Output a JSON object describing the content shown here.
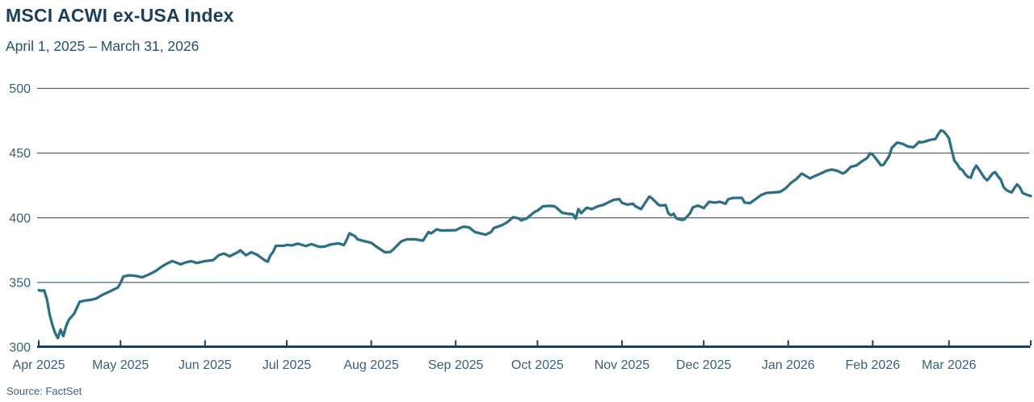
{
  "header": {
    "title": "MSCI ACWI ex-USA Index",
    "subtitle": "April 1, 2025 – March 31, 2026"
  },
  "footer": {
    "source": "Source: FactSet"
  },
  "colors": {
    "background": "#ffffff",
    "line": "#2d6f84",
    "gridline": "#4b697f",
    "axis": "#1e3e59",
    "title_text": "#1c3e59",
    "subtitle_text": "#27516b",
    "tick_text": "#3a5f78",
    "source_text": "#41607a"
  },
  "chart_data": {
    "type": "line",
    "title": "MSCI ACWI ex-USA Index",
    "subtitle": "April 1, 2025 – March 31, 2026",
    "source": "Source: FactSet",
    "xlabel": "",
    "ylabel": "",
    "x_start_date": "2025-04-01",
    "x_end_date": "2026-03-31",
    "x_unit": "day_offset_from_start",
    "ylim": [
      300,
      500
    ],
    "yticks": [
      300,
      350,
      400,
      450,
      500
    ],
    "grid": "horizontal",
    "legend": "none",
    "x_ticks": [
      {
        "label": "Apr 2025",
        "day": 0
      },
      {
        "label": "May 2025",
        "day": 30
      },
      {
        "label": "Jun 2025",
        "day": 61
      },
      {
        "label": "Jul 2025",
        "day": 91
      },
      {
        "label": "Aug 2025",
        "day": 122
      },
      {
        "label": "Sep 2025",
        "day": 153
      },
      {
        "label": "Oct 2025",
        "day": 183
      },
      {
        "label": "Nov 2025",
        "day": 214
      },
      {
        "label": "Dec 2025",
        "day": 244
      },
      {
        "label": "Jan 2026",
        "day": 275
      },
      {
        "label": "Feb 2026",
        "day": 306
      },
      {
        "label": "Mar 2026",
        "day": 334
      }
    ],
    "series": [
      {
        "name": "MSCI ACWI ex-USA Index",
        "points": [
          [
            0,
            344
          ],
          [
            1,
            343.6
          ],
          [
            2,
            343.9
          ],
          [
            3,
            337
          ],
          [
            4,
            325
          ],
          [
            5,
            317
          ],
          [
            6,
            311
          ],
          [
            7,
            307
          ],
          [
            8,
            313.5
          ],
          [
            9,
            308.5
          ],
          [
            10,
            316
          ],
          [
            11,
            321
          ],
          [
            13,
            326
          ],
          [
            15,
            335
          ],
          [
            17,
            336
          ],
          [
            19,
            336.5
          ],
          [
            21,
            337.5
          ],
          [
            23,
            340
          ],
          [
            26,
            343
          ],
          [
            29,
            346
          ],
          [
            30,
            349.5
          ],
          [
            31,
            354.5
          ],
          [
            33,
            355.5
          ],
          [
            35,
            355.2
          ],
          [
            38,
            354
          ],
          [
            41,
            356.7
          ],
          [
            43,
            359
          ],
          [
            45,
            362
          ],
          [
            47,
            364.5
          ],
          [
            49,
            366.5
          ],
          [
            52,
            364
          ],
          [
            54,
            365.5
          ],
          [
            56,
            366.4
          ],
          [
            58,
            365
          ],
          [
            60,
            366
          ],
          [
            61,
            366.5
          ],
          [
            64,
            367.2
          ],
          [
            66,
            371
          ],
          [
            68,
            372.3
          ],
          [
            70,
            370.2
          ],
          [
            73,
            373.3
          ],
          [
            74,
            374.8
          ],
          [
            76,
            371
          ],
          [
            78,
            373.3
          ],
          [
            80,
            371.5
          ],
          [
            83,
            367
          ],
          [
            84,
            366
          ],
          [
            85,
            371
          ],
          [
            86,
            373.5
          ],
          [
            87,
            378.3
          ],
          [
            90,
            378.3
          ],
          [
            91,
            379
          ],
          [
            93,
            378.6
          ],
          [
            95,
            380
          ],
          [
            98,
            378.1
          ],
          [
            100,
            379.6
          ],
          [
            103,
            377.5
          ],
          [
            105,
            377.8
          ],
          [
            107,
            379.3
          ],
          [
            110,
            380.2
          ],
          [
            112,
            378.9
          ],
          [
            113,
            383
          ],
          [
            114,
            387.9
          ],
          [
            116,
            385.8
          ],
          [
            117,
            383.3
          ],
          [
            119,
            382.1
          ],
          [
            122,
            380.6
          ],
          [
            124,
            377.5
          ],
          [
            127,
            373.3
          ],
          [
            129,
            373.6
          ],
          [
            130,
            375.4
          ],
          [
            133,
            381.7
          ],
          [
            135,
            383.3
          ],
          [
            138,
            383.4
          ],
          [
            141,
            382.3
          ],
          [
            143,
            389
          ],
          [
            144,
            387.9
          ],
          [
            146,
            391
          ],
          [
            148,
            390.1
          ],
          [
            151,
            390.3
          ],
          [
            153,
            390.4
          ],
          [
            155,
            392.5
          ],
          [
            156,
            393.1
          ],
          [
            158,
            392.5
          ],
          [
            160,
            389
          ],
          [
            162,
            387.9
          ],
          [
            164,
            386.9
          ],
          [
            166,
            389
          ],
          [
            167,
            392.1
          ],
          [
            170,
            394.2
          ],
          [
            172,
            396.7
          ],
          [
            173,
            398.5
          ],
          [
            174,
            400.3
          ],
          [
            176,
            399.6
          ],
          [
            177,
            397.9
          ],
          [
            179,
            399.4
          ],
          [
            182,
            404.6
          ],
          [
            183,
            405.5
          ],
          [
            185,
            408.8
          ],
          [
            187,
            409.2
          ],
          [
            189,
            409
          ],
          [
            190,
            407.7
          ],
          [
            192,
            403.9
          ],
          [
            194,
            403.1
          ],
          [
            196,
            402.7
          ],
          [
            197,
            399.3
          ],
          [
            198,
            406.7
          ],
          [
            199,
            403.5
          ],
          [
            201,
            407.7
          ],
          [
            203,
            406.7
          ],
          [
            205,
            408.8
          ],
          [
            207,
            409.8
          ],
          [
            209,
            411.9
          ],
          [
            211,
            413.9
          ],
          [
            213,
            414.4
          ],
          [
            214,
            411.5
          ],
          [
            216,
            410.2
          ],
          [
            218,
            410.8
          ],
          [
            219,
            408.8
          ],
          [
            221,
            406.7
          ],
          [
            222,
            409.8
          ],
          [
            224,
            416.4
          ],
          [
            225,
            415
          ],
          [
            227,
            410.8
          ],
          [
            228,
            409.4
          ],
          [
            230,
            409.8
          ],
          [
            231,
            403.5
          ],
          [
            232,
            401.9
          ],
          [
            233,
            403.1
          ],
          [
            234,
            399.4
          ],
          [
            236,
            398.3
          ],
          [
            237,
            398.9
          ],
          [
            239,
            403.5
          ],
          [
            240,
            408.1
          ],
          [
            242,
            409.4
          ],
          [
            244,
            407.5
          ],
          [
            246,
            412.3
          ],
          [
            248,
            411.7
          ],
          [
            250,
            412.3
          ],
          [
            252,
            410.8
          ],
          [
            253,
            414.4
          ],
          [
            255,
            415.4
          ],
          [
            258,
            415.4
          ],
          [
            259,
            411.7
          ],
          [
            261,
            411.3
          ],
          [
            263,
            414.4
          ],
          [
            265,
            417.5
          ],
          [
            267,
            419.2
          ],
          [
            270,
            419.6
          ],
          [
            272,
            420
          ],
          [
            274,
            422.7
          ],
          [
            276,
            426.9
          ],
          [
            278,
            430
          ],
          [
            280,
            434.2
          ],
          [
            282,
            431.7
          ],
          [
            283,
            430.4
          ],
          [
            285,
            432.5
          ],
          [
            287,
            434.2
          ],
          [
            289,
            436.3
          ],
          [
            291,
            437.3
          ],
          [
            293,
            436.3
          ],
          [
            295,
            434.2
          ],
          [
            296,
            435.2
          ],
          [
            298,
            439.4
          ],
          [
            300,
            440.4
          ],
          [
            302,
            443.5
          ],
          [
            304,
            446.3
          ],
          [
            305,
            449.8
          ],
          [
            306,
            448.8
          ],
          [
            308,
            443.5
          ],
          [
            309,
            440.5
          ],
          [
            310,
            441
          ],
          [
            312,
            447.5
          ],
          [
            313,
            454
          ],
          [
            315,
            458.1
          ],
          [
            317,
            457.1
          ],
          [
            319,
            455
          ],
          [
            321,
            454.6
          ],
          [
            322,
            456.5
          ],
          [
            323,
            458.7
          ],
          [
            324,
            458.3
          ],
          [
            325,
            458.8
          ],
          [
            327,
            460.2
          ],
          [
            329,
            460.8
          ],
          [
            330,
            464.5
          ],
          [
            331,
            467.5
          ],
          [
            332,
            466.8
          ],
          [
            333,
            464.4
          ],
          [
            334,
            461.3
          ],
          [
            335,
            452
          ],
          [
            336,
            444
          ],
          [
            337,
            441.5
          ],
          [
            338,
            438
          ],
          [
            339,
            436.7
          ],
          [
            340,
            433.5
          ],
          [
            341,
            431.5
          ],
          [
            342,
            431
          ],
          [
            343,
            437
          ],
          [
            344,
            440.3
          ],
          [
            345,
            437.3
          ],
          [
            347,
            430.9
          ],
          [
            348,
            428.9
          ],
          [
            349,
            431.5
          ],
          [
            350,
            434.3
          ],
          [
            351,
            435.2
          ],
          [
            352,
            432
          ],
          [
            353,
            429.5
          ],
          [
            354,
            423.8
          ],
          [
            355,
            421.5
          ],
          [
            356,
            420.4
          ],
          [
            357,
            419.6
          ],
          [
            358,
            423
          ],
          [
            359,
            425.8
          ],
          [
            360,
            423.5
          ],
          [
            361,
            419.2
          ],
          [
            362,
            418.2
          ],
          [
            363,
            417.5
          ],
          [
            364,
            416.8
          ]
        ]
      }
    ]
  }
}
